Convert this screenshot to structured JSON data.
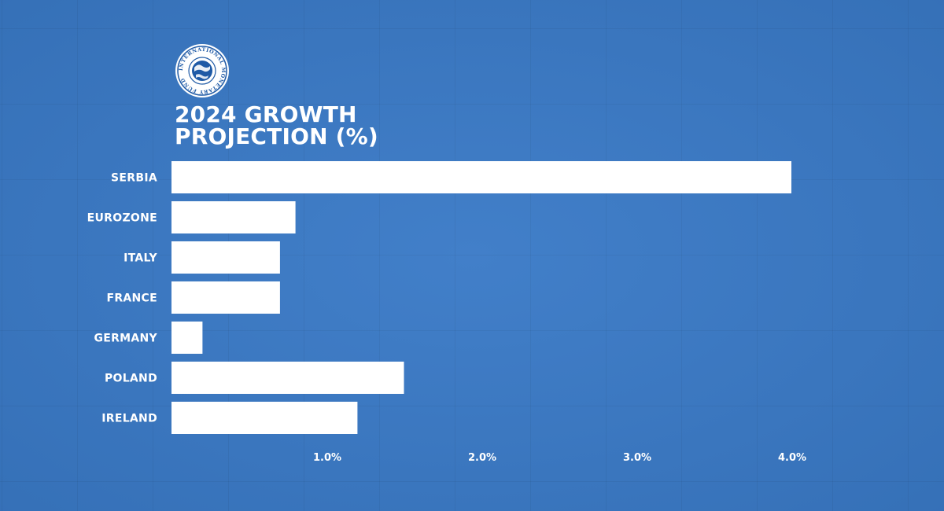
{
  "colors": {
    "background": "#3a7ac7",
    "bar": "#ffffff",
    "text": "#ffffff"
  },
  "logo": {
    "icon": "imf-seal-icon",
    "ring_text": "INTERNATIONAL MONETARY FUND"
  },
  "chart_data": {
    "type": "bar",
    "orientation": "horizontal",
    "title_line1": "2024 GROWTH",
    "title_line2": "PROJECTION (%)",
    "categories": [
      "SERBIA",
      "EUROZONE",
      "ITALY",
      "FRANCE",
      "GERMANY",
      "POLAND",
      "IRELAND"
    ],
    "values": [
      4.0,
      0.8,
      0.7,
      0.7,
      0.2,
      1.5,
      1.2
    ],
    "xlim": [
      0,
      4.0
    ],
    "x_ticks": [
      1.0,
      2.0,
      3.0,
      4.0
    ],
    "x_tick_labels": [
      "1.0%",
      "2.0%",
      "3.0%",
      "4.0%"
    ],
    "grid": false,
    "legend": "none"
  }
}
